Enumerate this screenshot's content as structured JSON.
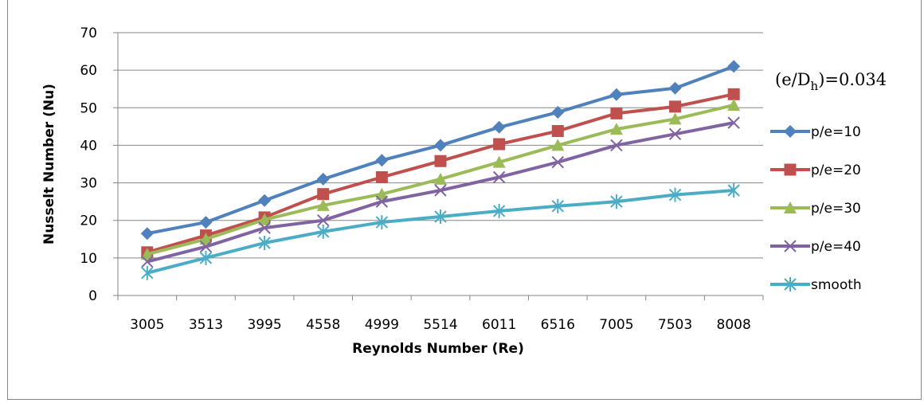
{
  "chart_data": {
    "type": "line",
    "xlabel": "Reynolds Number (Re)",
    "ylabel": "Nusselt Number (Nu)",
    "ylim": [
      0,
      70
    ],
    "yticks": [
      0,
      10,
      20,
      30,
      40,
      50,
      60,
      70
    ],
    "categories": [
      "3005",
      "3513",
      "3995",
      "4558",
      "4999",
      "5514",
      "6011",
      "6516",
      "7005",
      "7503",
      "8008"
    ],
    "annotation": {
      "prefix": "(e/D",
      "subscript": "h",
      "suffix": ")=0.034"
    },
    "legend_position": "right",
    "grid": "horizontal",
    "series": [
      {
        "name": "p/e=10",
        "color": "#4F81BD",
        "marker": "diamond",
        "values": [
          16.5,
          19.5,
          25.3,
          31,
          36,
          40,
          44.8,
          48.8,
          53.5,
          55.2,
          61
        ]
      },
      {
        "name": "p/e=20",
        "color": "#C0504D",
        "marker": "square",
        "values": [
          11.5,
          16,
          20.8,
          27,
          31.5,
          35.8,
          40.3,
          43.8,
          48.5,
          50.3,
          53.6
        ]
      },
      {
        "name": "p/e=30",
        "color": "#9BBB59",
        "marker": "triangle",
        "values": [
          11,
          15,
          20.2,
          24,
          27,
          31,
          35.5,
          40,
          44.3,
          47,
          50.7
        ]
      },
      {
        "name": "p/e=40",
        "color": "#8064A2",
        "marker": "x",
        "values": [
          9,
          13,
          18,
          20,
          25,
          28,
          31.5,
          35.5,
          40,
          43,
          46
        ]
      },
      {
        "name": "smooth",
        "color": "#4BACC6",
        "marker": "asterisk",
        "values": [
          6,
          10,
          14,
          17,
          19.5,
          21,
          22.5,
          23.8,
          25,
          26.8,
          28
        ]
      }
    ]
  }
}
